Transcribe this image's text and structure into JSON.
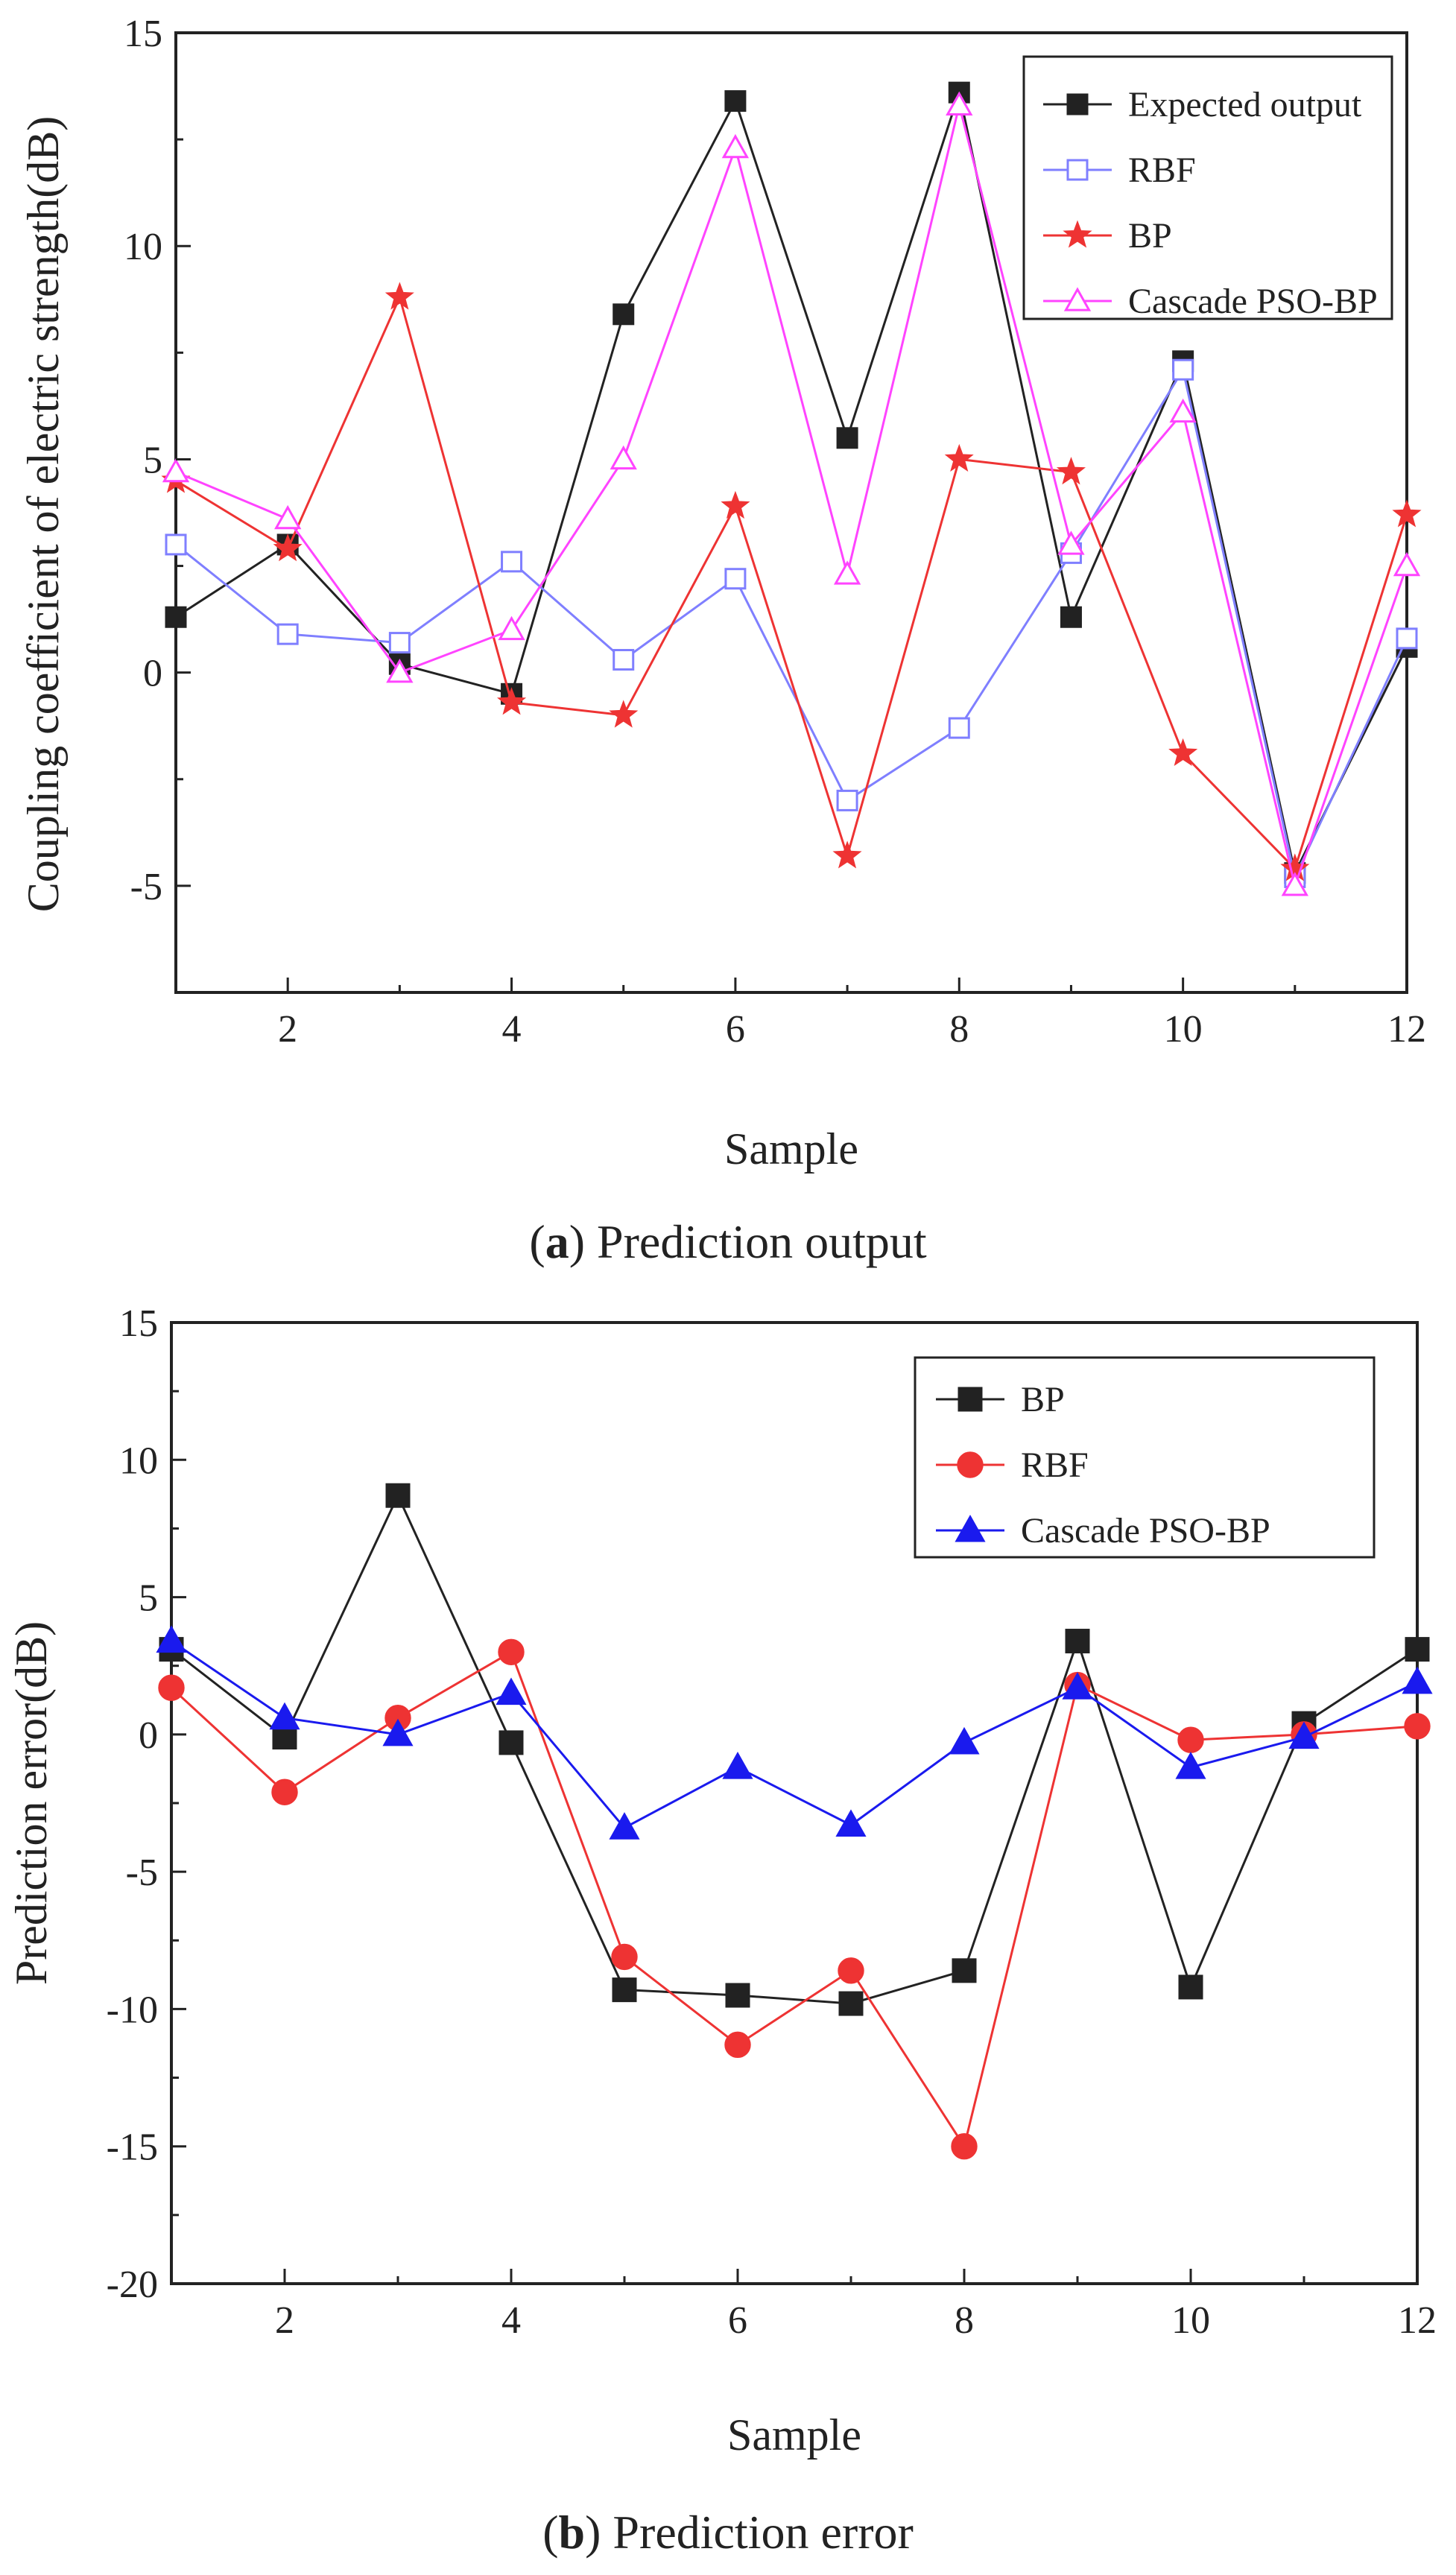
{
  "chart_data": [
    {
      "type": "line",
      "caption": {
        "letter": "a",
        "text": "Prediction output"
      },
      "xlabel": "Sample",
      "ylabel": "Coupling coefficient of electric strength(dB)",
      "xlim": [
        1,
        12
      ],
      "ylim": [
        -7.5,
        15
      ],
      "x_ticks": [
        2,
        4,
        6,
        8,
        10,
        12
      ],
      "y_ticks": [
        -5,
        0,
        5,
        10,
        15
      ],
      "grid": false,
      "legend_position": "top-right",
      "x": [
        1,
        2,
        3,
        4,
        5,
        6,
        7,
        8,
        9,
        10,
        11,
        12
      ],
      "series": [
        {
          "name": "Expected output",
          "color": "#222222",
          "marker": "square-filled",
          "values": [
            1.3,
            3.0,
            0.2,
            -0.5,
            8.4,
            13.4,
            5.5,
            13.6,
            1.3,
            7.3,
            -4.7,
            0.6
          ]
        },
        {
          "name": "RBF",
          "color": "#7f7fff",
          "marker": "square-open",
          "values": [
            3.0,
            0.9,
            0.7,
            2.6,
            0.3,
            2.2,
            -3.0,
            -1.3,
            2.8,
            7.1,
            -4.8,
            0.8
          ]
        },
        {
          "name": "BP",
          "color": "#ee3333",
          "marker": "star",
          "values": [
            4.5,
            2.9,
            8.8,
            -0.7,
            -1.0,
            3.9,
            -4.3,
            5.0,
            4.7,
            -1.9,
            -4.6,
            3.7
          ]
        },
        {
          "name": "Cascade PSO-BP",
          "color": "#ff44ff",
          "marker": "triangle-open",
          "values": [
            4.7,
            3.6,
            0.0,
            1.0,
            5.0,
            12.3,
            2.3,
            13.3,
            3.0,
            6.1,
            -5.0,
            2.5
          ]
        }
      ]
    },
    {
      "type": "line",
      "caption": {
        "letter": "b",
        "text": "Prediction error"
      },
      "xlabel": "Sample",
      "ylabel": "Prediction error(dB)",
      "xlim": [
        1,
        12
      ],
      "ylim": [
        -20,
        15
      ],
      "x_ticks": [
        2,
        4,
        6,
        8,
        10,
        12
      ],
      "y_ticks": [
        -20,
        -15,
        -10,
        -5,
        0,
        5,
        10,
        15
      ],
      "grid": false,
      "legend_position": "top-right",
      "x": [
        1,
        2,
        3,
        4,
        5,
        6,
        7,
        8,
        9,
        10,
        11,
        12
      ],
      "series": [
        {
          "name": "BP",
          "color": "#222222",
          "marker": "square-filled",
          "values": [
            3.1,
            -0.1,
            8.7,
            -0.3,
            -9.3,
            -9.5,
            -9.8,
            -8.6,
            3.4,
            -9.2,
            0.4,
            3.1
          ]
        },
        {
          "name": "RBF",
          "color": "#ee3333",
          "marker": "circle-filled",
          "values": [
            1.7,
            -2.1,
            0.6,
            3.0,
            -8.1,
            -11.3,
            -8.6,
            -15.0,
            1.8,
            -0.2,
            0.0,
            0.3
          ]
        },
        {
          "name": "Cascade PSO-BP",
          "color": "#1a1aee",
          "marker": "triangle-filled",
          "values": [
            3.4,
            0.6,
            0.0,
            1.5,
            -3.4,
            -1.2,
            -3.3,
            -0.3,
            1.7,
            -1.2,
            -0.1,
            1.9
          ]
        }
      ]
    }
  ]
}
